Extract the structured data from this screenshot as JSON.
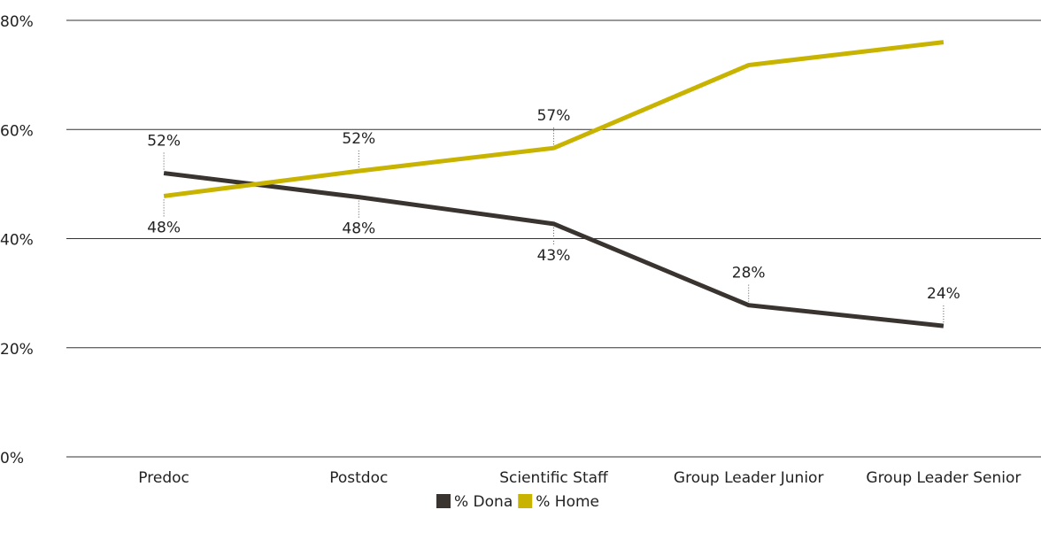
{
  "chart_data": {
    "type": "line",
    "categories": [
      "Predoc",
      "Postdoc",
      "Scientific Staff",
      "Group Leader Junior",
      "Group Leader Senior"
    ],
    "series": [
      {
        "name": "% Dona",
        "color": "#3a3431",
        "values": [
          52,
          47.6,
          42.7,
          27.8,
          24
        ],
        "value_labels": [
          "52%",
          "48%",
          "43%",
          "28%",
          "24%"
        ]
      },
      {
        "name": "% Home",
        "color": "#c8b400",
        "values": [
          47.8,
          52.4,
          56.6,
          71.8,
          76
        ],
        "value_labels": [
          "48%",
          "52%",
          "57%",
          null,
          null
        ]
      }
    ],
    "ylim": [
      0,
      80
    ],
    "yticks": [
      {
        "value": 0,
        "label": "0%"
      },
      {
        "value": 20,
        "label": "20%"
      },
      {
        "value": 40,
        "label": "40%"
      },
      {
        "value": 60,
        "label": "60%"
      },
      {
        "value": 80,
        "label": "80%"
      }
    ],
    "grid": true,
    "legend": "bottom"
  }
}
